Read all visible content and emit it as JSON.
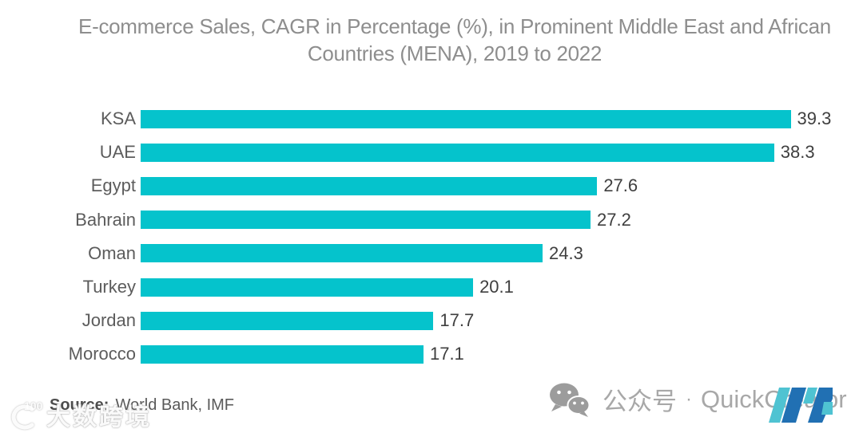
{
  "title": {
    "line1": "E-commerce Sales, CAGR in Percentage (%), in Prominent Middle East and African",
    "line2": "Countries (MENA), 2019 to 2022"
  },
  "chart_data": {
    "type": "bar",
    "orientation": "horizontal",
    "title": "E-commerce Sales, CAGR in Percentage (%), in Prominent Middle East and African Countries (MENA), 2019 to 2022",
    "categories": [
      "KSA",
      "UAE",
      "Egypt",
      "Bahrain",
      "Oman",
      "Turkey",
      "Jordan",
      "Morocco"
    ],
    "values": [
      39.3,
      38.3,
      27.6,
      27.2,
      24.3,
      20.1,
      17.7,
      17.1
    ],
    "xlabel": "",
    "ylabel": "",
    "xlim": [
      0,
      40
    ],
    "grid": false,
    "legend": "none",
    "value_labels_shown": true,
    "bar_color": "#05C3CC",
    "category_label_color": "#5C5C5C",
    "value_label_color": "#3F3F3F"
  },
  "source": {
    "label": "Source:",
    "text": "World Bank, IMF"
  },
  "footer": {
    "wechat_icon": "wechat-icon",
    "wechat_label": "公众号",
    "separator": "·",
    "brand": "QuickCreator",
    "logo": "mordor-intelligence-m-logo",
    "logo_teal": "#4FC3D2",
    "logo_blue": "#2170B3",
    "text_color": "#A8A8A8"
  },
  "watermark": {
    "logo_text": "100",
    "text": "大数跨境"
  },
  "colors": {
    "background": "#FFFFFF",
    "title_gray": "#8E8E8E",
    "accent_teal": "#05C3CC"
  }
}
